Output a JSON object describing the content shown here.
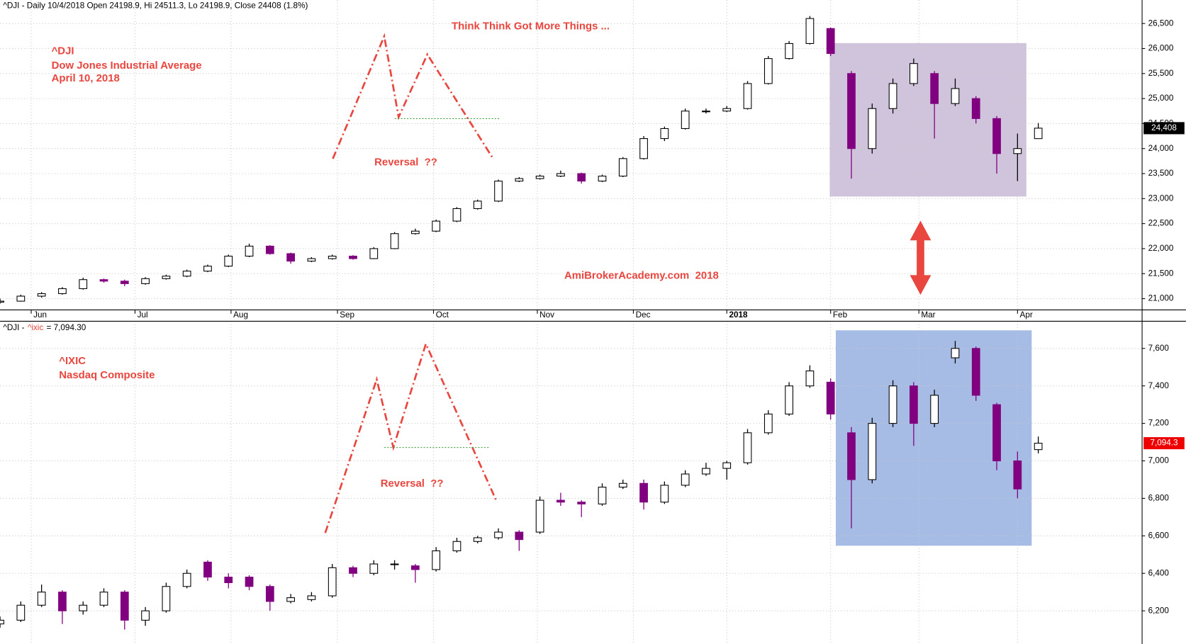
{
  "chart_data": [
    {
      "type": "candlestick",
      "header": "^DJI - Daily 10/4/2018 Open 24198.9, Hi 24511.3, Lo 24198.9, Close 24408 (1.8%)",
      "title": "^DJI",
      "subtitle": "Dow Jones Industrial Average",
      "date": "April 10, 2018",
      "annotations": [
        "Think Think Got More Things ...",
        "Reversal  ??",
        "AmiBrokerAcademy.com  2018"
      ],
      "up_color": "#ffffff",
      "down_color": "#800080",
      "xlim": [
        0,
        220
      ],
      "xticks": [
        {
          "value": 6,
          "label": "Jun"
        },
        {
          "value": 26,
          "label": "Jul"
        },
        {
          "value": 44.5,
          "label": "Aug"
        },
        {
          "value": 65,
          "label": "Sep"
        },
        {
          "value": 83.5,
          "label": "Oct"
        },
        {
          "value": 103.5,
          "label": "Nov"
        },
        {
          "value": 122,
          "label": "Dec"
        },
        {
          "value": 140,
          "label": "2018"
        },
        {
          "value": 160,
          "label": "Feb"
        },
        {
          "value": 177,
          "label": "Mar"
        },
        {
          "value": 196,
          "label": "Apr"
        }
      ],
      "ylim": [
        20775,
        26970
      ],
      "yticks": [
        {
          "value": 21000,
          "label": "21,000"
        },
        {
          "value": 21500,
          "label": "21,500"
        },
        {
          "value": 22000,
          "label": "22,000"
        },
        {
          "value": 22500,
          "label": "22,500"
        },
        {
          "value": 23000,
          "label": "23,000"
        },
        {
          "value": 23500,
          "label": "23,500"
        },
        {
          "value": 24000,
          "label": "24,000"
        },
        {
          "value": 24500,
          "label": "24,500"
        },
        {
          "value": 25000,
          "label": "25,000"
        },
        {
          "value": 25500,
          "label": "25,500"
        },
        {
          "value": 26000,
          "label": "26,000"
        },
        {
          "value": 26500,
          "label": "26,500"
        }
      ],
      "x": [
        0,
        4,
        8,
        12,
        16,
        20,
        24,
        28,
        32,
        36,
        40,
        44,
        48,
        52,
        56,
        60,
        64,
        68,
        72,
        76,
        80,
        84,
        88,
        92,
        96,
        100,
        104,
        108,
        112,
        116,
        120,
        124,
        128,
        132,
        136,
        140,
        144,
        148,
        152,
        156,
        160,
        164,
        168,
        172,
        176,
        180,
        184,
        188,
        192,
        196,
        200
      ],
      "open": [
        20930,
        20950,
        21050,
        21100,
        21200,
        21380,
        21350,
        21300,
        21400,
        21450,
        21550,
        21650,
        21850,
        22050,
        21900,
        21750,
        21800,
        21850,
        21800,
        22000,
        22300,
        22350,
        22550,
        22800,
        22950,
        23350,
        23400,
        23450,
        23500,
        23350,
        23450,
        23800,
        24200,
        24400,
        24750,
        24750,
        24800,
        25300,
        25800,
        26100,
        26400,
        25500,
        24000,
        24800,
        25300,
        25500,
        24900,
        25000,
        24600,
        23900,
        24198.9
      ],
      "high": [
        21000,
        21080,
        21130,
        21230,
        21420,
        21400,
        21380,
        21430,
        21480,
        21580,
        21680,
        21880,
        22100,
        22070,
        21920,
        21830,
        21880,
        21870,
        22030,
        22330,
        22400,
        22580,
        22830,
        22980,
        23380,
        23430,
        23480,
        23560,
        23520,
        23480,
        23830,
        24250,
        24440,
        24800,
        24800,
        24850,
        25350,
        25850,
        26150,
        26650,
        26420,
        25550,
        24900,
        25400,
        25800,
        25550,
        25400,
        25050,
        24650,
        24300,
        24511.3
      ],
      "low": [
        20900,
        20940,
        21020,
        21080,
        21180,
        21320,
        21250,
        21280,
        21380,
        21430,
        21530,
        21630,
        21830,
        21880,
        21700,
        21730,
        21780,
        21780,
        21790,
        21990,
        22280,
        22330,
        22530,
        22780,
        22930,
        23330,
        23380,
        23430,
        23300,
        23330,
        23430,
        23780,
        24150,
        24380,
        24700,
        24730,
        24780,
        25280,
        25780,
        26080,
        25850,
        23400,
        23900,
        24700,
        25250,
        24200,
        24850,
        24500,
        23500,
        23350,
        24198.9
      ],
      "close": [
        20950,
        21050,
        21100,
        21200,
        21380,
        21350,
        21300,
        21400,
        21450,
        21550,
        21650,
        21850,
        22050,
        21900,
        21750,
        21800,
        21850,
        21800,
        22000,
        22300,
        22350,
        22550,
        22800,
        22950,
        23350,
        23400,
        23450,
        23500,
        23350,
        23450,
        23800,
        24200,
        24400,
        24750,
        24750,
        24800,
        25300,
        25800,
        26100,
        26600,
        25900,
        24000,
        24800,
        25300,
        25700,
        24900,
        25200,
        24600,
        23900,
        24000,
        24408
      ],
      "value_label": "24,408",
      "value_label_color": "#000000"
    },
    {
      "type": "candlestick",
      "header": [
        "^DJI -",
        "^ixic",
        "= 7,094.30"
      ],
      "title": "^IXIC",
      "subtitle": "Nasdaq Composite",
      "annotations": [
        "Reversal  ??"
      ],
      "up_color": "#ffffff",
      "down_color": "#800080",
      "xlim": [
        0,
        220
      ],
      "ylim": [
        6027,
        7745
      ],
      "yticks": [
        {
          "value": 6200,
          "label": "6,200"
        },
        {
          "value": 6400,
          "label": "6,400"
        },
        {
          "value": 6600,
          "label": "6,600"
        },
        {
          "value": 6800,
          "label": "6,800"
        },
        {
          "value": 7000,
          "label": "7,000"
        },
        {
          "value": 7200,
          "label": "7,200"
        },
        {
          "value": 7400,
          "label": "7,400"
        },
        {
          "value": 7600,
          "label": "7,600"
        }
      ],
      "x": [
        0,
        4,
        8,
        12,
        16,
        20,
        24,
        28,
        32,
        36,
        40,
        44,
        48,
        52,
        56,
        60,
        64,
        68,
        72,
        76,
        80,
        84,
        88,
        92,
        96,
        100,
        104,
        108,
        112,
        116,
        120,
        124,
        128,
        132,
        136,
        140,
        144,
        148,
        152,
        156,
        160,
        164,
        168,
        172,
        176,
        180,
        184,
        188,
        192,
        196,
        200
      ],
      "open": [
        6130,
        6150,
        6230,
        6300,
        6200,
        6230,
        6300,
        6150,
        6200,
        6330,
        6460,
        6380,
        6380,
        6330,
        6250,
        6260,
        6280,
        6430,
        6400,
        6450,
        6440,
        6420,
        6520,
        6570,
        6590,
        6620,
        6620,
        6790,
        6780,
        6770,
        6860,
        6880,
        6780,
        6870,
        6930,
        6960,
        6990,
        7150,
        7250,
        7400,
        7420,
        7150,
        6900,
        7200,
        7400,
        7200,
        7550,
        7600,
        7300,
        7000,
        7060
      ],
      "high": [
        6170,
        6250,
        6340,
        6310,
        6250,
        6320,
        6310,
        6220,
        6350,
        6420,
        6470,
        6400,
        6390,
        6340,
        6290,
        6300,
        6450,
        6440,
        6470,
        6470,
        6450,
        6540,
        6590,
        6600,
        6640,
        6630,
        6810,
        6830,
        6790,
        6880,
        6900,
        6900,
        6890,
        6950,
        6990,
        7000,
        7170,
        7270,
        7420,
        7510,
        7440,
        7180,
        7230,
        7430,
        7420,
        7380,
        7640,
        7610,
        7310,
        7050,
        7130
      ],
      "low": [
        6110,
        6140,
        6220,
        6130,
        6180,
        6220,
        6100,
        6120,
        6190,
        6320,
        6360,
        6320,
        6310,
        6200,
        6240,
        6250,
        6270,
        6380,
        6390,
        6420,
        6350,
        6410,
        6510,
        6560,
        6580,
        6520,
        6610,
        6760,
        6700,
        6760,
        6850,
        6740,
        6770,
        6860,
        6920,
        6900,
        6980,
        7140,
        7240,
        7390,
        7220,
        6640,
        6880,
        7180,
        7080,
        7180,
        7520,
        7320,
        6950,
        6800,
        7040
      ],
      "close": [
        6150,
        6230,
        6300,
        6200,
        6230,
        6300,
        6150,
        6200,
        6330,
        6400,
        6380,
        6350,
        6330,
        6250,
        6270,
        6280,
        6430,
        6400,
        6450,
        6450,
        6420,
        6520,
        6570,
        6590,
        6620,
        6580,
        6790,
        6780,
        6770,
        6860,
        6880,
        6780,
        6870,
        6930,
        6960,
        6990,
        7150,
        7250,
        7400,
        7480,
        7250,
        6900,
        7200,
        7400,
        7200,
        7350,
        7600,
        7350,
        7000,
        6850,
        7094.3
      ],
      "value_label": "7,094.3",
      "value_label_color": "#ee0000"
    }
  ]
}
